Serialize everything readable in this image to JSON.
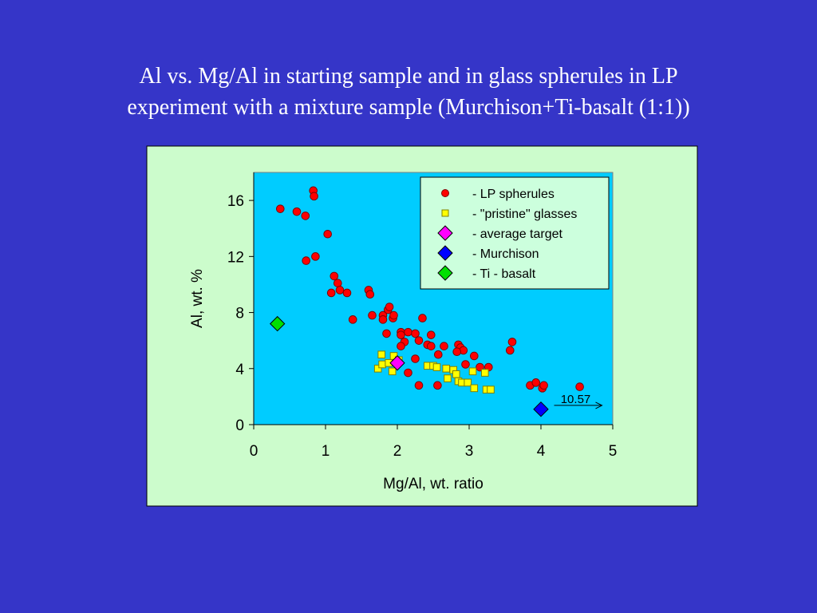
{
  "slide": {
    "title_line1": "Al vs. Mg/Al in starting sample and in glass spherules in LP",
    "title_line2": "experiment with a mixture sample (Murchison+Ti-basalt (1:1))"
  },
  "colors": {
    "background": "#3535c8",
    "chart_area": "#ccfccc",
    "plot_area": "#00ccff",
    "legend_bg": "#ccffdd",
    "lp_spherules": "#ff0000",
    "pristine_glasses": "#ffff00",
    "average_target": "#ff00ff",
    "murchison": "#0000ff",
    "ti_basalt": "#00e000"
  },
  "chart_data": {
    "type": "scatter",
    "title": "",
    "xlabel": "Mg/Al, wt. ratio",
    "ylabel": "Al,  wt. %",
    "xlim": [
      0,
      5
    ],
    "ylim": [
      0,
      18
    ],
    "xticks": [
      0,
      1,
      2,
      3,
      4,
      5
    ],
    "yticks": [
      0,
      4,
      8,
      12,
      16
    ],
    "grid": false,
    "legend_position": "top-right",
    "annotation": {
      "text": "10.57",
      "note": "Murchison Mg/Al value off-scale, arrow pointing right",
      "x": 4.45,
      "y": 1.2
    },
    "series": [
      {
        "name": "- LP spherules",
        "marker": "circle",
        "points": [
          [
            0.37,
            15.4
          ],
          [
            0.6,
            15.2
          ],
          [
            0.72,
            14.9
          ],
          [
            0.83,
            16.7
          ],
          [
            0.84,
            16.3
          ],
          [
            1.03,
            13.6
          ],
          [
            0.73,
            11.7
          ],
          [
            0.86,
            12.0
          ],
          [
            1.12,
            10.6
          ],
          [
            1.17,
            10.1
          ],
          [
            1.08,
            9.4
          ],
          [
            1.2,
            9.6
          ],
          [
            1.3,
            9.4
          ],
          [
            1.6,
            9.6
          ],
          [
            1.62,
            9.3
          ],
          [
            1.38,
            7.5
          ],
          [
            1.65,
            7.8
          ],
          [
            1.8,
            7.8
          ],
          [
            1.8,
            7.5
          ],
          [
            1.87,
            8.2
          ],
          [
            1.89,
            8.4
          ],
          [
            1.94,
            7.6
          ],
          [
            1.95,
            7.8
          ],
          [
            1.85,
            6.5
          ],
          [
            2.05,
            6.6
          ],
          [
            2.05,
            6.4
          ],
          [
            2.15,
            6.6
          ],
          [
            2.25,
            6.5
          ],
          [
            2.35,
            7.6
          ],
          [
            2.3,
            6.0
          ],
          [
            2.1,
            5.9
          ],
          [
            2.05,
            5.6
          ],
          [
            2.42,
            5.7
          ],
          [
            2.47,
            5.6
          ],
          [
            2.47,
            6.4
          ],
          [
            2.65,
            5.6
          ],
          [
            2.85,
            5.7
          ],
          [
            2.88,
            5.5
          ],
          [
            2.92,
            5.3
          ],
          [
            2.83,
            5.2
          ],
          [
            2.57,
            5.0
          ],
          [
            3.07,
            4.9
          ],
          [
            2.25,
            4.7
          ],
          [
            2.95,
            4.3
          ],
          [
            3.15,
            4.1
          ],
          [
            3.27,
            4.1
          ],
          [
            2.15,
            3.7
          ],
          [
            2.3,
            2.8
          ],
          [
            2.56,
            2.8
          ],
          [
            3.57,
            5.3
          ],
          [
            3.6,
            5.9
          ],
          [
            3.85,
            2.8
          ],
          [
            3.93,
            3.0
          ],
          [
            4.02,
            2.6
          ],
          [
            4.04,
            2.8
          ],
          [
            4.54,
            2.7
          ]
        ]
      },
      {
        "name": "- \"pristine\" glasses",
        "marker": "square",
        "points": [
          [
            1.78,
            5.0
          ],
          [
            1.73,
            4.0
          ],
          [
            1.79,
            4.3
          ],
          [
            1.88,
            4.4
          ],
          [
            1.93,
            3.8
          ],
          [
            1.95,
            4.9
          ],
          [
            2.02,
            4.6
          ],
          [
            2.42,
            4.2
          ],
          [
            2.5,
            4.2
          ],
          [
            2.55,
            4.1
          ],
          [
            2.68,
            4.0
          ],
          [
            2.78,
            3.9
          ],
          [
            2.82,
            3.6
          ],
          [
            2.7,
            3.3
          ],
          [
            2.85,
            3.1
          ],
          [
            2.9,
            3.0
          ],
          [
            2.98,
            3.0
          ],
          [
            3.05,
            3.8
          ],
          [
            3.07,
            2.6
          ],
          [
            3.22,
            3.7
          ],
          [
            3.24,
            2.5
          ],
          [
            3.3,
            2.5
          ]
        ]
      },
      {
        "name": "- average target",
        "marker": "diamond",
        "points": [
          [
            2.0,
            4.4
          ]
        ]
      },
      {
        "name": "- Murchison",
        "marker": "diamond",
        "points": [
          [
            4.0,
            1.1
          ]
        ]
      },
      {
        "name": "- Ti - basalt",
        "marker": "diamond",
        "points": [
          [
            0.33,
            7.2
          ]
        ]
      }
    ]
  }
}
